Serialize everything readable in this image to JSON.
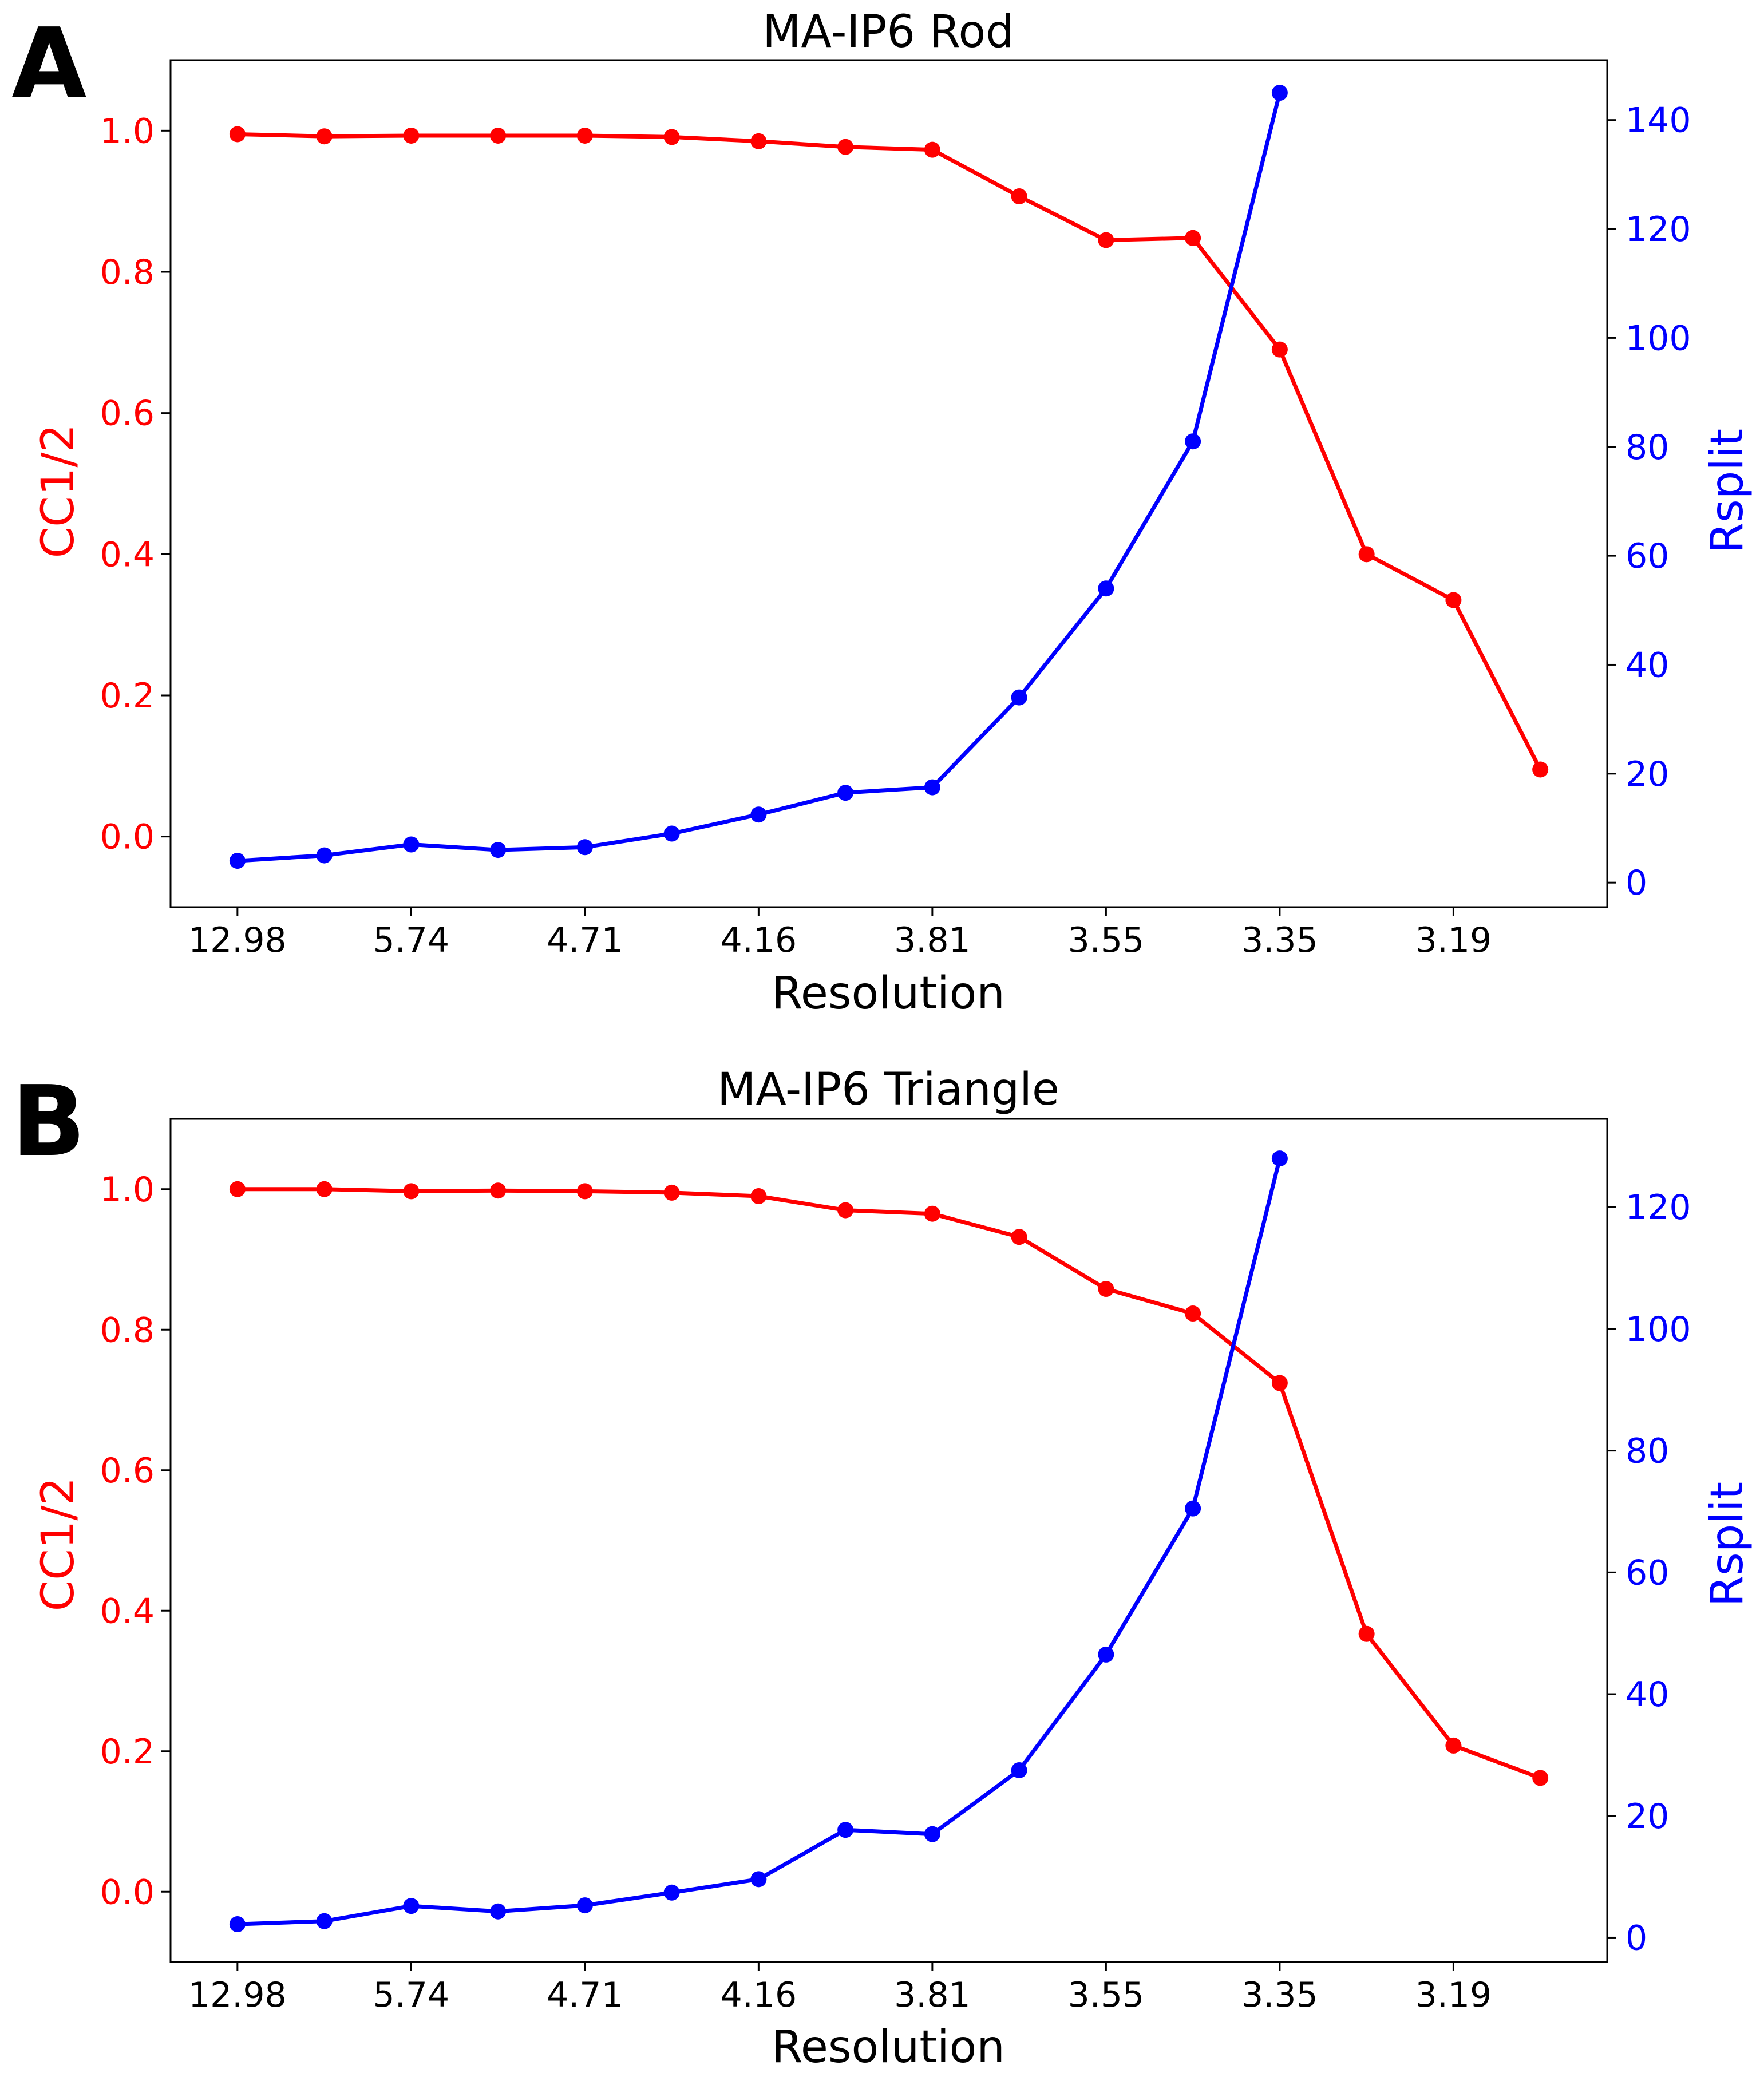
{
  "colors": {
    "cc": "#ff0000",
    "rsplit": "#0000ff",
    "axis": "#000000"
  },
  "chart_data": [
    {
      "panel": "A",
      "type": "line",
      "title": "MA-IP6 Rod",
      "xlabel": "Resolution",
      "ylabel": "CC1/2",
      "y2label": "Rsplit",
      "x_tick_labels": [
        "12.98",
        "5.74",
        "4.71",
        "4.16",
        "3.81",
        "3.55",
        "3.35",
        "3.19"
      ],
      "x_tick_positions": [
        0,
        2,
        4,
        6,
        8,
        10,
        12,
        14
      ],
      "ylim": [
        -0.1,
        1.1
      ],
      "y_ticks": [
        0.0,
        0.2,
        0.4,
        0.6,
        0.8,
        1.0
      ],
      "y_tick_labels": [
        "0.0",
        "0.2",
        "0.4",
        "0.6",
        "0.8",
        "1.0"
      ],
      "y2lim": [
        -4.5,
        151
      ],
      "y2_ticks": [
        0,
        20,
        40,
        60,
        80,
        100,
        120,
        140
      ],
      "y2_tick_labels": [
        "0",
        "20",
        "40",
        "60",
        "80",
        "100",
        "120",
        "140"
      ],
      "series": [
        {
          "name": "CC1/2",
          "axis": "left",
          "x": [
            0,
            1,
            2,
            3,
            4,
            5,
            6,
            7,
            8,
            9,
            10,
            11,
            12,
            13,
            14,
            15
          ],
          "values": [
            0.995,
            0.992,
            0.993,
            0.993,
            0.993,
            0.991,
            0.985,
            0.977,
            0.973,
            0.907,
            0.845,
            0.848,
            0.69,
            0.4,
            0.335,
            0.095
          ]
        },
        {
          "name": "Rsplit",
          "axis": "right",
          "x": [
            0,
            1,
            2,
            3,
            4,
            5,
            6,
            7,
            8,
            9,
            10,
            11,
            12
          ],
          "values": [
            4,
            5,
            7,
            6,
            6.5,
            9,
            12.5,
            16.5,
            17.5,
            34,
            54,
            81,
            145
          ]
        }
      ]
    },
    {
      "panel": "B",
      "type": "line",
      "title": "MA-IP6 Triangle",
      "xlabel": "Resolution",
      "ylabel": "CC1/2",
      "y2label": "Rsplit",
      "x_tick_labels": [
        "12.98",
        "5.74",
        "4.71",
        "4.16",
        "3.81",
        "3.55",
        "3.35",
        "3.19"
      ],
      "x_tick_positions": [
        0,
        2,
        4,
        6,
        8,
        10,
        12,
        14
      ],
      "ylim": [
        -0.1,
        1.1
      ],
      "y_ticks": [
        0.0,
        0.2,
        0.4,
        0.6,
        0.8,
        1.0
      ],
      "y_tick_labels": [
        "0.0",
        "0.2",
        "0.4",
        "0.6",
        "0.8",
        "1.0"
      ],
      "y2lim": [
        -4,
        134.5
      ],
      "y2_ticks": [
        0,
        20,
        40,
        60,
        80,
        100,
        120
      ],
      "y2_tick_labels": [
        "0",
        "20",
        "40",
        "60",
        "80",
        "100",
        "120"
      ],
      "series": [
        {
          "name": "CC1/2",
          "axis": "left",
          "x": [
            0,
            1,
            2,
            3,
            4,
            5,
            6,
            7,
            8,
            9,
            10,
            11,
            12,
            13,
            14,
            15
          ],
          "values": [
            1.0,
            1.0,
            0.997,
            0.998,
            0.997,
            0.995,
            0.99,
            0.97,
            0.965,
            0.932,
            0.858,
            0.823,
            0.724,
            0.367,
            0.208,
            0.162
          ]
        },
        {
          "name": "Rsplit",
          "axis": "right",
          "x": [
            0,
            1,
            2,
            3,
            4,
            5,
            6,
            7,
            8,
            9,
            10,
            11,
            12
          ],
          "values": [
            2.2,
            2.7,
            5.2,
            4.3,
            5.3,
            7.4,
            9.6,
            17.7,
            17,
            27.5,
            46.5,
            70.5,
            128
          ]
        }
      ]
    }
  ]
}
